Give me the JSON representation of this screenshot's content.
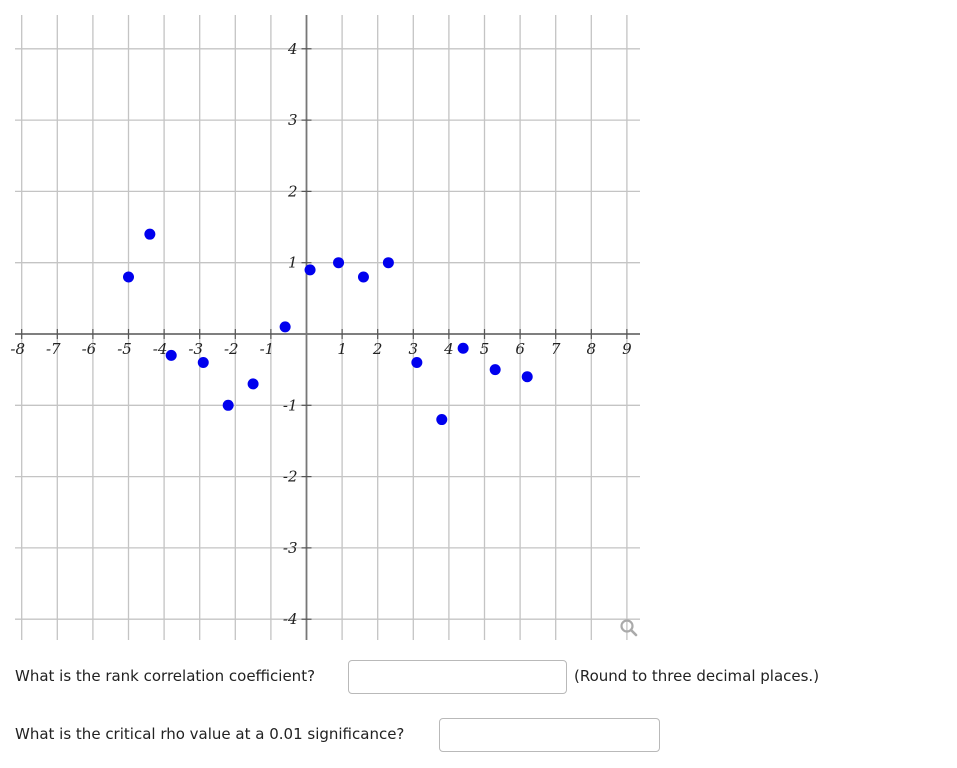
{
  "chart_data": {
    "type": "scatter",
    "title": "",
    "xlabel": "",
    "ylabel": "",
    "xlim": [
      -8.4,
      9.4
    ],
    "ylim": [
      -4.4,
      4.4
    ],
    "grid": true,
    "x_ticks": [
      -8,
      -7,
      -6,
      -5,
      -4,
      -3,
      -2,
      -1,
      1,
      2,
      3,
      4,
      5,
      6,
      7,
      8,
      9
    ],
    "y_ticks": [
      -4,
      -3,
      -2,
      -1,
      1,
      2,
      3,
      4
    ],
    "point_color": "#0000ee",
    "points": [
      {
        "x": -5.0,
        "y": 0.8
      },
      {
        "x": -4.4,
        "y": 1.4
      },
      {
        "x": -3.8,
        "y": -0.3
      },
      {
        "x": -2.9,
        "y": -0.4
      },
      {
        "x": -2.2,
        "y": -1.0
      },
      {
        "x": -1.5,
        "y": -0.7
      },
      {
        "x": -0.6,
        "y": 0.1
      },
      {
        "x": 0.1,
        "y": 0.9
      },
      {
        "x": 0.9,
        "y": 1.0
      },
      {
        "x": 1.6,
        "y": 0.8
      },
      {
        "x": 2.3,
        "y": 1.0
      },
      {
        "x": 3.1,
        "y": -0.4
      },
      {
        "x": 3.8,
        "y": -1.2
      },
      {
        "x": 4.4,
        "y": -0.2
      },
      {
        "x": 5.3,
        "y": -0.5
      },
      {
        "x": 6.2,
        "y": -0.6
      }
    ]
  },
  "plot": {
    "zoom_icon": "magnifier-icon"
  },
  "questions": {
    "q1": {
      "label": "What is the rank correlation coefficient?",
      "value": "",
      "note": "(Round to three decimal places.)"
    },
    "q2": {
      "label": "What is the critical rho value at a 0.01 significance?",
      "value": ""
    }
  }
}
